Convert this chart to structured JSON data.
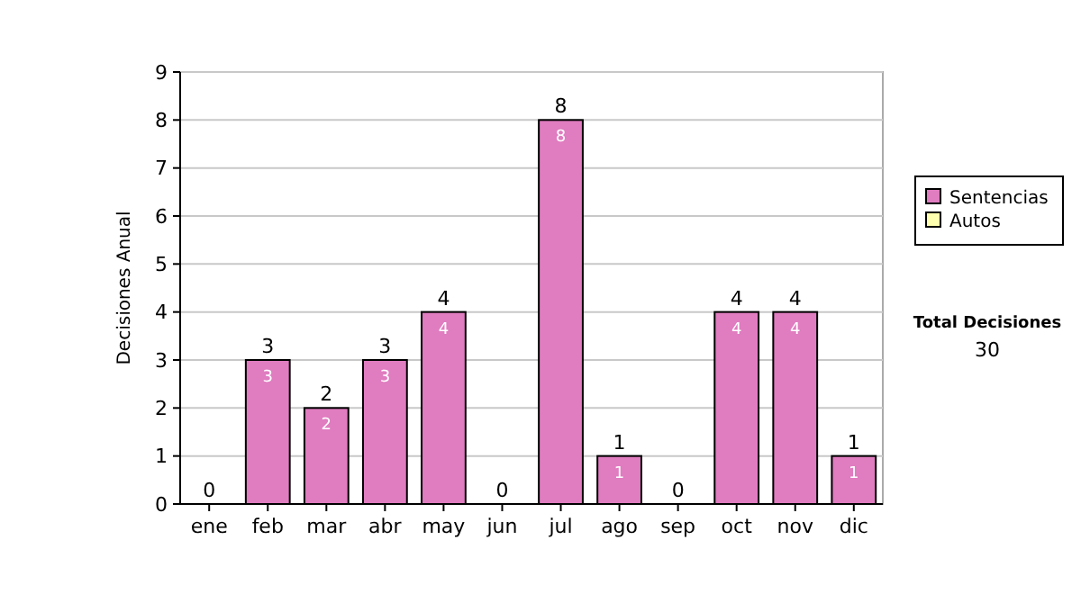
{
  "chart_data": {
    "type": "bar",
    "stacked": true,
    "ylabel": "Decisiones Anual",
    "categories": [
      "ene",
      "feb",
      "mar",
      "abr",
      "may",
      "jun",
      "jul",
      "ago",
      "sep",
      "oct",
      "nov",
      "dic"
    ],
    "series": [
      {
        "name": "Sentencias",
        "color": "#e07cc0",
        "values": [
          0,
          3,
          2,
          3,
          4,
          0,
          8,
          1,
          0,
          4,
          4,
          1
        ],
        "value_labels": [
          null,
          "3",
          "2",
          "3",
          "4",
          null,
          "8",
          "1",
          null,
          "4",
          "4",
          "1"
        ]
      },
      {
        "name": "Autos",
        "color": "#ffffb0",
        "values": [
          0,
          0,
          0,
          0,
          0,
          0,
          0,
          0,
          0,
          0,
          0,
          0
        ]
      }
    ],
    "totals": [
      "0",
      "3",
      "2",
      "3",
      "4",
      "0",
      "8",
      "1",
      "0",
      "4",
      "4",
      "1"
    ],
    "ylim": [
      0,
      9
    ],
    "yticks": [
      0,
      1,
      2,
      3,
      4,
      5,
      6,
      7,
      8,
      9
    ],
    "grid": "y",
    "legend": "right",
    "annotations": [
      "Total Decisiones",
      "30"
    ]
  }
}
